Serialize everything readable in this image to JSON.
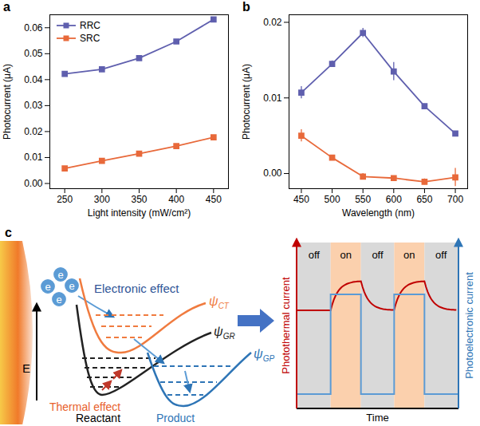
{
  "chart_data": [
    {
      "panel_label": "a",
      "type": "line",
      "x_label": "Light intensity (mW/cm²)",
      "y_label": "Photocurrent (μA)",
      "x": [
        250,
        300,
        350,
        400,
        450
      ],
      "series": [
        {
          "name": "RRC",
          "color": "#5f5fae",
          "marker": "square",
          "values": [
            0.0422,
            0.044,
            0.0483,
            0.0547,
            0.0632
          ],
          "errors": [
            0.0008,
            0.0006,
            0.0005,
            0.0006,
            0.0009
          ]
        },
        {
          "name": "SRC",
          "color": "#e8693a",
          "marker": "square",
          "values": [
            0.0058,
            0.0087,
            0.0115,
            0.0144,
            0.0178
          ],
          "errors": [
            0.0004,
            0.0004,
            0.0004,
            0.0005,
            0.0006
          ]
        }
      ],
      "xlim": [
        230,
        470
      ],
      "xticks": [
        250,
        300,
        350,
        400,
        450
      ],
      "ylim": [
        -0.002,
        0.065
      ],
      "yticks": [
        {
          "value": 0,
          "label": "0.00"
        },
        {
          "value": 0.01,
          "label": "0.01"
        },
        {
          "value": 0.02,
          "label": "0.02"
        },
        {
          "value": 0.03,
          "label": "0.03"
        },
        {
          "value": 0.04,
          "label": "0.04"
        },
        {
          "value": 0.05,
          "label": "0.05"
        },
        {
          "value": 0.06,
          "label": "0.06"
        }
      ],
      "grid": false,
      "legend": "top-left"
    },
    {
      "panel_label": "b",
      "type": "line",
      "x_label": "Wavelength (nm)",
      "y_label": "Photocurrent (μA)",
      "x": [
        450,
        500,
        550,
        600,
        650,
        700
      ],
      "series": [
        {
          "name": "RRC",
          "color": "#5f5fae",
          "marker": "square",
          "values": [
            0.0107,
            0.0145,
            0.0186,
            0.0135,
            0.0089,
            0.0053
          ],
          "errors": [
            0.0008,
            0.0004,
            0.0006,
            0.0012,
            0.0003,
            0.0003
          ]
        },
        {
          "name": "SRC",
          "color": "#e8693a",
          "marker": "square",
          "values": [
            0.005,
            0.0021,
            -0.0004,
            -0.0006,
            -0.0011,
            -0.0005
          ],
          "errors": [
            0.0008,
            0.0003,
            0.0004,
            0.0003,
            0.0004,
            0.0012
          ]
        }
      ],
      "xlim": [
        430,
        720
      ],
      "xticks": [
        450,
        500,
        550,
        600,
        650,
        700
      ],
      "ylim": [
        -0.002,
        0.021
      ],
      "yticks": [
        {
          "value": 0,
          "label": "0.00"
        },
        {
          "value": 0.01,
          "label": "0.01"
        },
        {
          "value": 0.02,
          "label": "0.02"
        }
      ],
      "grid": false
    }
  ],
  "diagram": {
    "panel_label": "c",
    "field": "E",
    "electrons": [
      "e",
      "e",
      "e",
      "e"
    ],
    "electronic_effect": "Electronic effect",
    "thermal_effect": "Thermal effect",
    "states": [
      {
        "symbol": "ψ",
        "subscript": "CT"
      },
      {
        "symbol": "ψ",
        "subscript": "GR",
        "label": "Reactant"
      },
      {
        "symbol": "ψ",
        "subscript": "GP",
        "label": "Product"
      }
    ],
    "timeline": {
      "phases": [
        "off",
        "on",
        "off",
        "on",
        "off"
      ],
      "left_axis": "Photothermal current",
      "right_axis": "Photoelectronic current",
      "x_axis": "Time"
    }
  }
}
